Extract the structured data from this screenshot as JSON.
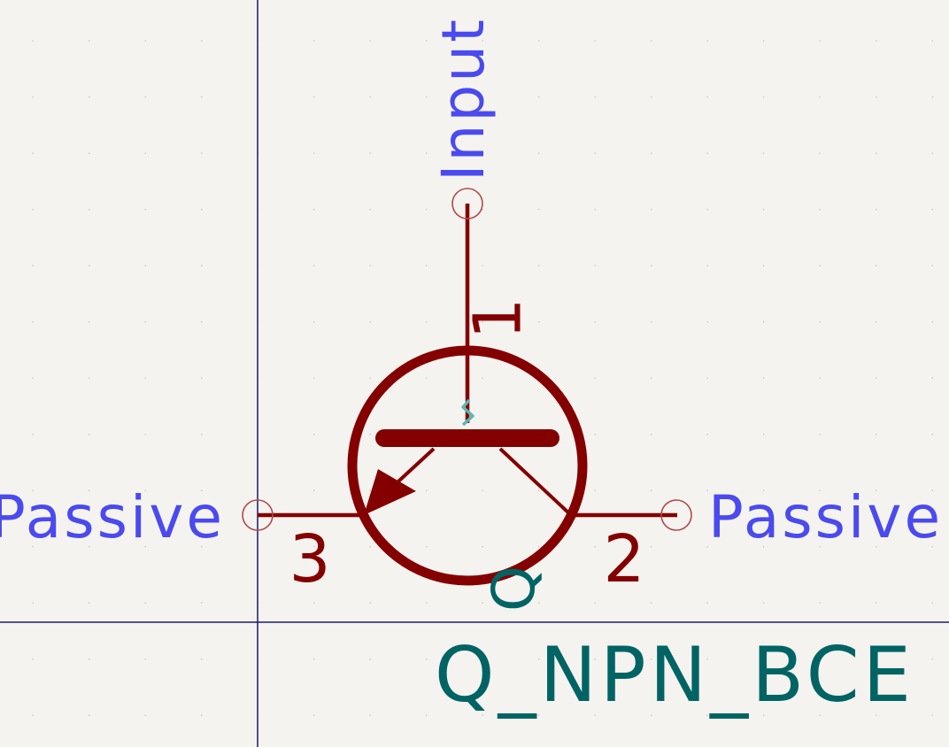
{
  "colors": {
    "background": "#f5f3ef",
    "body": "#840000",
    "pin_type_text": "#4a4af0",
    "field_text": "#006464",
    "pin_marker": "#b04a4a",
    "axis": "#1a1a6e",
    "unconnected": "#5fb5b5"
  },
  "symbol": {
    "reference": "Q",
    "value": "Q_NPN_BCE"
  },
  "pins": {
    "base": {
      "number": "1",
      "type": "Input"
    },
    "collector": {
      "number": "2",
      "type": "Passive"
    },
    "emitter": {
      "number": "3",
      "type": "Passive"
    }
  }
}
